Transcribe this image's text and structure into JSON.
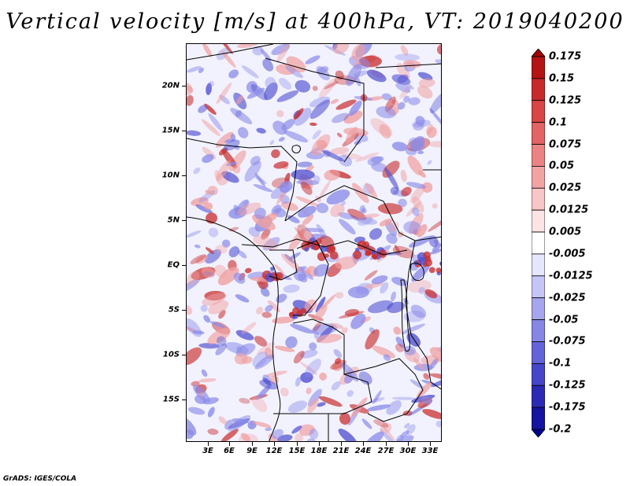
{
  "title": "Vertical velocity [m/s] at 400hPa, VT: 2019040200",
  "footer": "GrADS: IGES/COLA",
  "map": {
    "lat_labels": [
      "20N",
      "15N",
      "10N",
      "5N",
      "EQ",
      "5S",
      "10S",
      "15S"
    ],
    "lon_labels": [
      "3E",
      "6E",
      "9E",
      "12E",
      "15E",
      "18E",
      "21E",
      "24E",
      "27E",
      "30E",
      "33E"
    ],
    "field_colors": {
      "background": "#f2f2ff",
      "negative": "#8a8ae8",
      "strong_negative": "#5050d0",
      "positive": "#f0a0a0",
      "strong_positive": "#c83030"
    }
  },
  "colorbar": {
    "levels": [
      "0.175",
      "0.15",
      "0.125",
      "0.1",
      "0.075",
      "0.05",
      "0.025",
      "0.0125",
      "0.005",
      "-0.005",
      "-0.0125",
      "-0.025",
      "-0.05",
      "-0.075",
      "-0.1",
      "-0.125",
      "-0.175",
      "-0.2"
    ],
    "colors": [
      "#a00000",
      "#b41414",
      "#c62a2a",
      "#d84646",
      "#e26464",
      "#ea8484",
      "#f2a4a4",
      "#f8c6c6",
      "#fde4e4",
      "#ffffff",
      "#e6e6fc",
      "#c6c6f6",
      "#a6a6ee",
      "#8686e4",
      "#6464d8",
      "#4646c8",
      "#2a2ab4",
      "#1414a0",
      "#000090"
    ]
  }
}
